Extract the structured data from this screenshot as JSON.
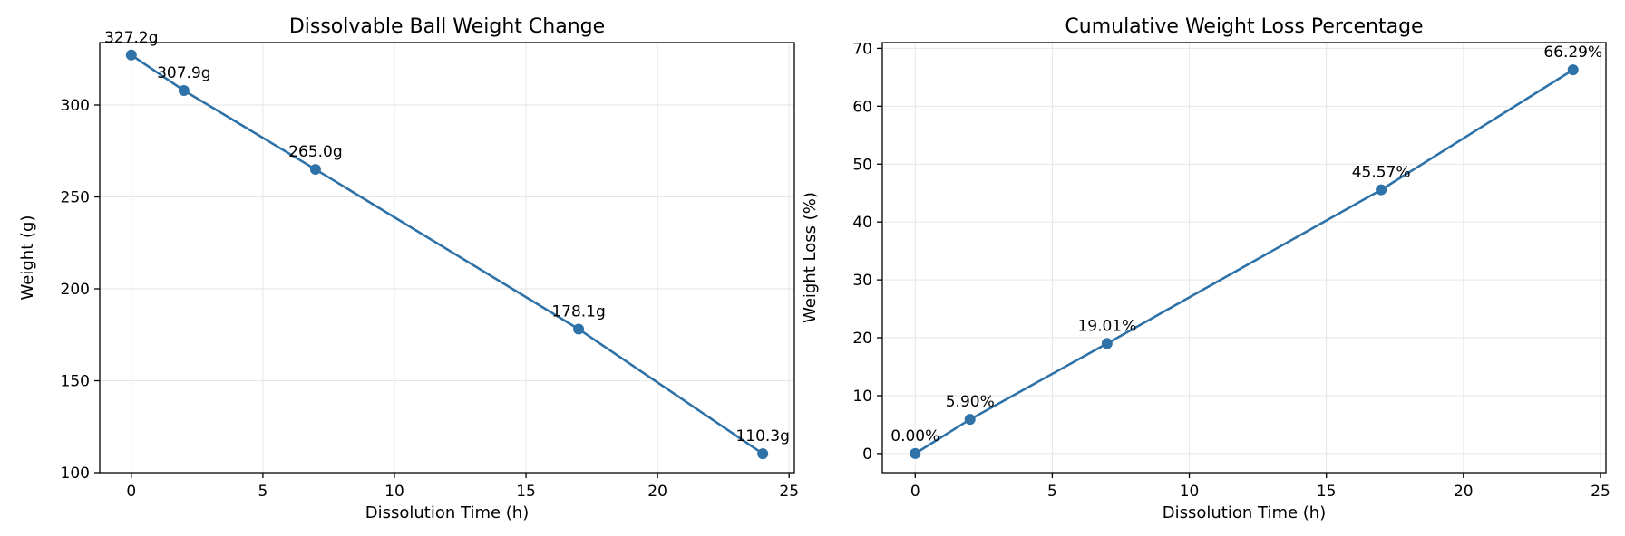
{
  "chart_data": [
    {
      "type": "line",
      "title": "Dissolvable Ball Weight Change",
      "xlabel": "Dissolution Time (h)",
      "ylabel": "Weight (g)",
      "xlim": [
        -1.2,
        25.2
      ],
      "ylim": [
        100,
        334
      ],
      "xticks": [
        0,
        5,
        10,
        15,
        20,
        25
      ],
      "yticks": [
        100,
        150,
        200,
        250,
        300
      ],
      "grid": true,
      "color": "#2e72a8",
      "x": [
        0,
        2,
        7,
        17,
        24
      ],
      "values": [
        327.2,
        307.9,
        265.0,
        178.1,
        110.3
      ],
      "data_labels": [
        "327.2g",
        "307.9g",
        "265.0g",
        "178.1g",
        "110.3g"
      ]
    },
    {
      "type": "line",
      "title": "Cumulative Weight Loss Percentage",
      "xlabel": "Dissolution Time (h)",
      "ylabel": "Weight Loss (%)",
      "xlim": [
        -1.2,
        25.2
      ],
      "ylim": [
        -3.3,
        71
      ],
      "xticks": [
        0,
        5,
        10,
        15,
        20,
        25
      ],
      "yticks": [
        0,
        10,
        20,
        30,
        40,
        50,
        60,
        70
      ],
      "grid": true,
      "color": "#2e72a8",
      "x": [
        0,
        2,
        7,
        17,
        24
      ],
      "values": [
        0.0,
        5.9,
        19.01,
        45.57,
        66.29
      ],
      "data_labels": [
        "0.00%",
        "5.90%",
        "19.01%",
        "45.57%",
        "66.29%"
      ]
    }
  ]
}
